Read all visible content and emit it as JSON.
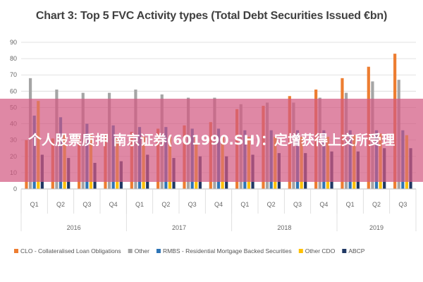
{
  "chart_data": {
    "type": "bar",
    "title": "Chart 3: Top 5 FVC Activity types (Total Debt Securities Issued €bn)",
    "xlabel": "",
    "ylabel": "",
    "ylim": [
      0,
      90
    ],
    "yticks": [
      0,
      10,
      20,
      30,
      40,
      50,
      60,
      70,
      80,
      90
    ],
    "grid": true,
    "legend_position": "bottom",
    "categories": [
      "Q1",
      "Q2",
      "Q3",
      "Q4",
      "Q1",
      "Q2",
      "Q3",
      "Q4",
      "Q1",
      "Q2",
      "Q3",
      "Q4",
      "Q1",
      "Q2",
      "Q3"
    ],
    "groups": [
      {
        "label": "2016",
        "count": 4
      },
      {
        "label": "2017",
        "count": 4
      },
      {
        "label": "2018",
        "count": 4
      },
      {
        "label": "2019",
        "count": 3
      }
    ],
    "series": [
      {
        "name": "CLO - Collateralised Loan Obligations",
        "color": "#ed7d31",
        "values": [
          30,
          31,
          33,
          34,
          35,
          37,
          39,
          41,
          49,
          51,
          57,
          61,
          68,
          75,
          83
        ]
      },
      {
        "name": "Other",
        "color": "#a5a5a5",
        "values": [
          68,
          61,
          59,
          59,
          61,
          58,
          56,
          56,
          52,
          53,
          53,
          56,
          59,
          66,
          67
        ]
      },
      {
        "name": "RMBS - Residential Mortgage Backed Securities",
        "color": "#2e75b6",
        "values": [
          45,
          44,
          40,
          39,
          38,
          38,
          37,
          37,
          36,
          36,
          36,
          36,
          36,
          36,
          36
        ]
      },
      {
        "name": "Other CDO",
        "color": "#ffc000",
        "values": [
          54,
          34,
          33,
          32,
          32,
          32,
          32,
          32,
          32,
          32,
          32,
          32,
          33,
          34,
          33
        ]
      },
      {
        "name": "ABCP",
        "color": "#203864",
        "values": [
          21,
          19,
          16,
          17,
          21,
          19,
          20,
          20,
          21,
          22,
          22,
          23,
          23,
          25,
          25
        ]
      }
    ]
  },
  "overlay": {
    "text": "个人股票质押 南京证券(601990.SH)：定增获得上交所受理",
    "color": "#d25a82"
  }
}
